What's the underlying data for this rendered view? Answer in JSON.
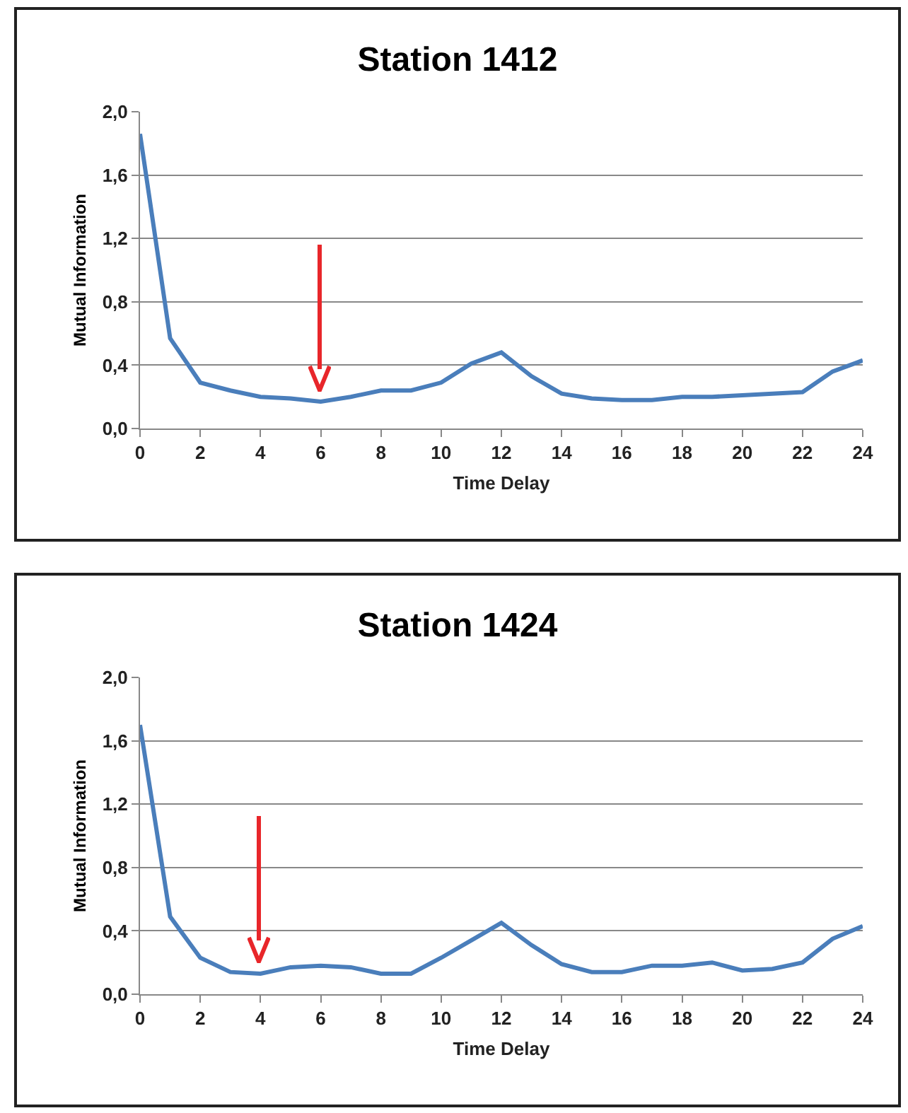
{
  "chart_data": [
    {
      "type": "line",
      "title": "Station 1412",
      "xlabel": "Time Delay",
      "ylabel": "Mutual Information",
      "x": [
        0,
        1,
        2,
        3,
        4,
        5,
        6,
        7,
        8,
        9,
        10,
        11,
        12,
        13,
        14,
        15,
        16,
        17,
        18,
        19,
        20,
        21,
        22,
        23,
        24
      ],
      "series": [
        {
          "color": "#4a7ebb",
          "values": [
            1.86,
            0.57,
            0.29,
            0.24,
            0.2,
            0.19,
            0.17,
            0.2,
            0.24,
            0.24,
            0.29,
            0.41,
            0.48,
            0.33,
            0.22,
            0.19,
            0.18,
            0.18,
            0.2,
            0.2,
            0.21,
            0.22,
            0.23,
            0.36,
            0.43
          ]
        }
      ],
      "xlim": [
        0,
        24
      ],
      "xticks": [
        0,
        2,
        4,
        6,
        8,
        10,
        12,
        14,
        16,
        18,
        20,
        22,
        24
      ],
      "ylim": [
        0,
        2
      ],
      "yticks": [
        {
          "value": 0,
          "label": "0,0"
        },
        {
          "value": 0.4,
          "label": "0,4"
        },
        {
          "value": 0.8,
          "label": "0,8"
        },
        {
          "value": 1.2,
          "label": "1,2"
        },
        {
          "value": 1.6,
          "label": "1,6"
        },
        {
          "value": 2,
          "label": "2,0"
        }
      ],
      "grid": "y",
      "marker": "none",
      "line_style": "solid"
    },
    {
      "type": "line",
      "title": "Station 1424",
      "xlabel": "Time Delay",
      "ylabel": "Mutual Information",
      "x": [
        0,
        1,
        2,
        3,
        4,
        5,
        6,
        7,
        8,
        9,
        10,
        11,
        12,
        13,
        14,
        15,
        16,
        17,
        18,
        19,
        20,
        21,
        22,
        23,
        24
      ],
      "series": [
        {
          "color": "#4a7ebb",
          "values": [
            1.7,
            0.49,
            0.23,
            0.14,
            0.13,
            0.17,
            0.18,
            0.17,
            0.13,
            0.13,
            0.23,
            0.34,
            0.45,
            0.31,
            0.19,
            0.14,
            0.14,
            0.18,
            0.18,
            0.2,
            0.15,
            0.16,
            0.2,
            0.35,
            0.43
          ]
        }
      ],
      "xlim": [
        0,
        24
      ],
      "xticks": [
        0,
        2,
        4,
        6,
        8,
        10,
        12,
        14,
        16,
        18,
        20,
        22,
        24
      ],
      "ylim": [
        0,
        2
      ],
      "yticks": [
        {
          "value": 0,
          "label": "0,0"
        },
        {
          "value": 0.4,
          "label": "0,4"
        },
        {
          "value": 0.8,
          "label": "0,8"
        },
        {
          "value": 1.2,
          "label": "1,2"
        },
        {
          "value": 1.6,
          "label": "1,6"
        },
        {
          "value": 2,
          "label": "2,0"
        }
      ],
      "grid": "y",
      "marker": "none",
      "line_style": "solid"
    }
  ]
}
